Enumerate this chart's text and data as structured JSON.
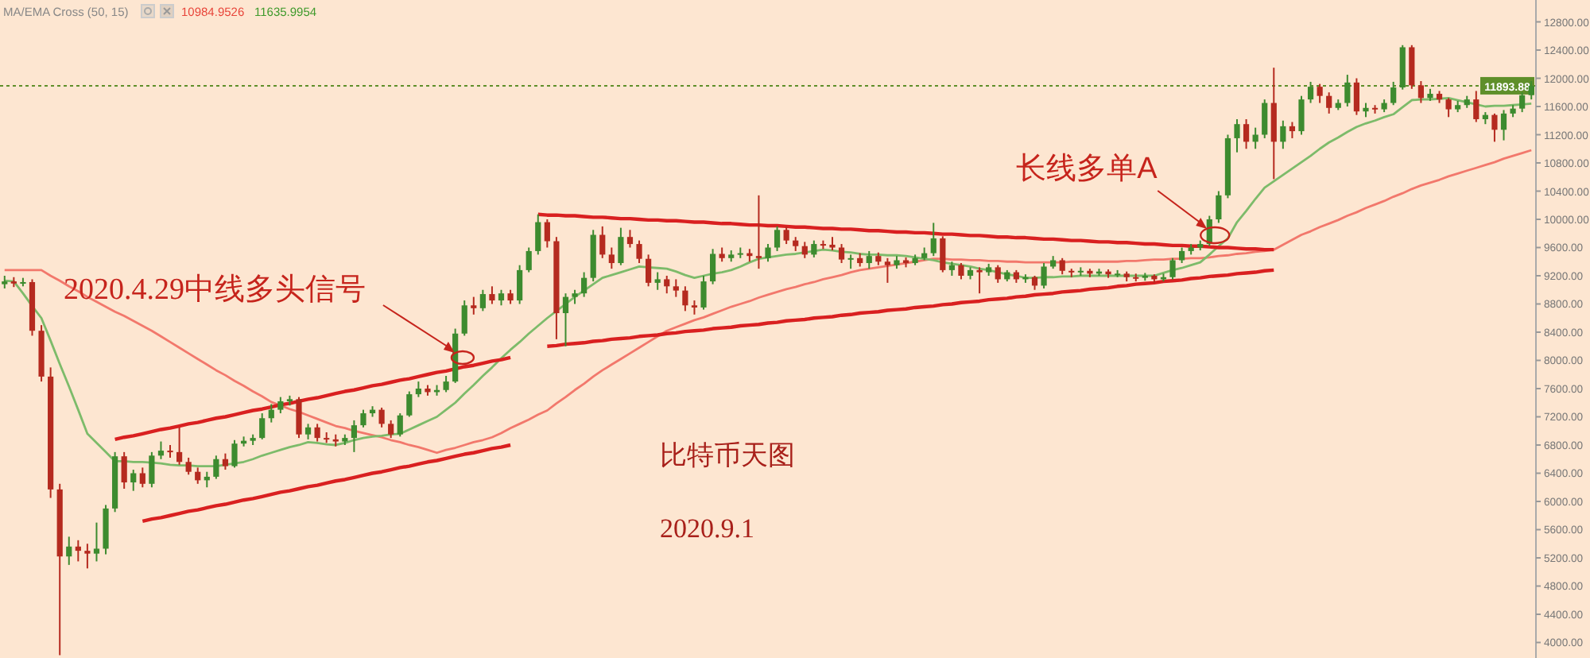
{
  "chart_data": {
    "type": "candlestick",
    "annotations": [
      "MA/EMA Cross (50, 15)",
      "10984.9526",
      "11635.9954",
      "2020.4.29中线多头信号",
      "长线多单A",
      "比特币天图",
      "2020.9.1"
    ],
    "categories": [
      null,
      null,
      null,
      null,
      null,
      null,
      null,
      null,
      null,
      null,
      null,
      null,
      null,
      null,
      null,
      null,
      null,
      null,
      null,
      null,
      null,
      null,
      null,
      null,
      null,
      null,
      null,
      null,
      null,
      null,
      null,
      null,
      null,
      null,
      null,
      null,
      null,
      null,
      null,
      null,
      null,
      null,
      null,
      null,
      null,
      null,
      null,
      null,
      null,
      null,
      null,
      null,
      null,
      null,
      null,
      null,
      null,
      null,
      null,
      null,
      null,
      null,
      null,
      null,
      null,
      null,
      null,
      null,
      null,
      null,
      null,
      null,
      null,
      null,
      null,
      null,
      null,
      null,
      null,
      null,
      null,
      null,
      null,
      null,
      null,
      null,
      null,
      null,
      null,
      null,
      null,
      null,
      null,
      null,
      null,
      null,
      null,
      null,
      null,
      null,
      null,
      null,
      null,
      null,
      null,
      null,
      null,
      null,
      null,
      null,
      null,
      null,
      null,
      null,
      null,
      null,
      null,
      null,
      null,
      null,
      null,
      null,
      null,
      null,
      null,
      null,
      null,
      null,
      null,
      null,
      null,
      null,
      null,
      null,
      null,
      null,
      null,
      null,
      null,
      null,
      null,
      null,
      null,
      null,
      null,
      null,
      null,
      null,
      null,
      null,
      null,
      null,
      null,
      null,
      null,
      null,
      null,
      null,
      null,
      null,
      null,
      null,
      null,
      null,
      null,
      null,
      null
    ],
    "ohlc": [
      [
        9080,
        9200,
        9020,
        9120
      ],
      [
        9120,
        9180,
        9040,
        9090
      ],
      [
        9090,
        9170,
        9050,
        9110
      ],
      [
        9110,
        9150,
        8350,
        8420
      ],
      [
        8420,
        8500,
        7700,
        7770
      ],
      [
        7770,
        7900,
        6050,
        6170
      ],
      [
        6170,
        6250,
        3820,
        5220
      ],
      [
        5220,
        5500,
        5100,
        5360
      ],
      [
        5360,
        5450,
        5150,
        5300
      ],
      [
        5300,
        5400,
        5050,
        5260
      ],
      [
        5260,
        5700,
        5150,
        5330
      ],
      [
        5330,
        5950,
        5250,
        5900
      ],
      [
        5900,
        6700,
        5850,
        6640
      ],
      [
        6640,
        6700,
        6180,
        6270
      ],
      [
        6270,
        6450,
        6150,
        6400
      ],
      [
        6400,
        6480,
        6200,
        6250
      ],
      [
        6250,
        6700,
        6200,
        6650
      ],
      [
        6650,
        6850,
        6600,
        6720
      ],
      [
        6720,
        6800,
        6620,
        6700
      ],
      [
        6700,
        7050,
        6520,
        6560
      ],
      [
        6560,
        6620,
        6380,
        6420
      ],
      [
        6420,
        6480,
        6250,
        6300
      ],
      [
        6300,
        6420,
        6200,
        6350
      ],
      [
        6350,
        6650,
        6320,
        6600
      ],
      [
        6600,
        6680,
        6450,
        6500
      ],
      [
        6500,
        6870,
        6480,
        6820
      ],
      [
        6820,
        6920,
        6780,
        6860
      ],
      [
        6860,
        6950,
        6800,
        6900
      ],
      [
        6900,
        7250,
        6880,
        7180
      ],
      [
        7180,
        7380,
        7120,
        7300
      ],
      [
        7300,
        7480,
        7250,
        7420
      ],
      [
        7420,
        7500,
        7360,
        7450
      ],
      [
        7450,
        7480,
        6900,
        6950
      ],
      [
        6950,
        7100,
        6880,
        7050
      ],
      [
        7050,
        7100,
        6850,
        6900
      ],
      [
        6900,
        6980,
        6830,
        6880
      ],
      [
        6880,
        6950,
        6780,
        6850
      ],
      [
        6850,
        6950,
        6800,
        6900
      ],
      [
        6900,
        7150,
        6700,
        7080
      ],
      [
        7080,
        7300,
        7050,
        7250
      ],
      [
        7250,
        7350,
        7200,
        7300
      ],
      [
        7300,
        7330,
        7050,
        7100
      ],
      [
        7100,
        7150,
        6900,
        6950
      ],
      [
        6950,
        7250,
        6920,
        7220
      ],
      [
        7220,
        7560,
        7200,
        7520
      ],
      [
        7520,
        7700,
        7480,
        7600
      ],
      [
        7600,
        7650,
        7500,
        7550
      ],
      [
        7550,
        7650,
        7500,
        7580
      ],
      [
        7580,
        7780,
        7550,
        7700
      ],
      [
        7700,
        8450,
        7680,
        8380
      ],
      [
        8380,
        8850,
        8350,
        8780
      ],
      [
        8780,
        8900,
        8650,
        8740
      ],
      [
        8740,
        9000,
        8700,
        8940
      ],
      [
        8940,
        9050,
        8800,
        8850
      ],
      [
        8850,
        9000,
        8780,
        8950
      ],
      [
        8950,
        9000,
        8800,
        8850
      ],
      [
        8850,
        9350,
        8800,
        9280
      ],
      [
        9280,
        9600,
        9250,
        9550
      ],
      [
        9550,
        10070,
        9500,
        9960
      ],
      [
        9960,
        10000,
        9600,
        9690
      ],
      [
        9690,
        9750,
        8300,
        8670
      ],
      [
        8670,
        8950,
        8200,
        8900
      ],
      [
        8900,
        9000,
        8800,
        8950
      ],
      [
        8950,
        9250,
        8900,
        9170
      ],
      [
        9170,
        9850,
        9120,
        9780
      ],
      [
        9780,
        9900,
        9450,
        9500
      ],
      [
        9500,
        9600,
        9300,
        9380
      ],
      [
        9380,
        9880,
        9350,
        9750
      ],
      [
        9750,
        9850,
        9600,
        9650
      ],
      [
        9650,
        9700,
        9380,
        9440
      ],
      [
        9440,
        9500,
        9050,
        9100
      ],
      [
        9100,
        9250,
        9000,
        9150
      ],
      [
        9150,
        9200,
        8950,
        9050
      ],
      [
        9050,
        9150,
        8900,
        8990
      ],
      [
        8990,
        9050,
        8700,
        8780
      ],
      [
        8780,
        8850,
        8650,
        8750
      ],
      [
        8750,
        9200,
        8720,
        9120
      ],
      [
        9120,
        9580,
        9080,
        9510
      ],
      [
        9510,
        9600,
        9400,
        9450
      ],
      [
        9450,
        9560,
        9400,
        9500
      ],
      [
        9500,
        9600,
        9450,
        9520
      ],
      [
        9520,
        9580,
        9400,
        9480
      ],
      [
        9480,
        10340,
        9300,
        9450
      ],
      [
        9450,
        9650,
        9400,
        9600
      ],
      [
        9600,
        9900,
        9550,
        9850
      ],
      [
        9850,
        9900,
        9650,
        9700
      ],
      [
        9700,
        9750,
        9550,
        9620
      ],
      [
        9620,
        9680,
        9450,
        9500
      ],
      [
        9500,
        9700,
        9460,
        9650
      ],
      [
        9650,
        9700,
        9580,
        9640
      ],
      [
        9640,
        9750,
        9560,
        9600
      ],
      [
        9600,
        9650,
        9380,
        9430
      ],
      [
        9430,
        9500,
        9300,
        9450
      ],
      [
        9450,
        9520,
        9330,
        9380
      ],
      [
        9380,
        9550,
        9300,
        9480
      ],
      [
        9480,
        9530,
        9350,
        9400
      ],
      [
        9400,
        9450,
        9100,
        9350
      ],
      [
        9350,
        9480,
        9300,
        9420
      ],
      [
        9420,
        9460,
        9320,
        9380
      ],
      [
        9380,
        9500,
        9350,
        9450
      ],
      [
        9450,
        9600,
        9420,
        9520
      ],
      [
        9520,
        9950,
        9480,
        9730
      ],
      [
        9730,
        9760,
        9250,
        9280
      ],
      [
        9280,
        9400,
        9200,
        9350
      ],
      [
        9350,
        9380,
        9150,
        9200
      ],
      [
        9200,
        9320,
        9150,
        9280
      ],
      [
        9280,
        9320,
        8950,
        9250
      ],
      [
        9250,
        9370,
        9200,
        9320
      ],
      [
        9320,
        9350,
        9100,
        9150
      ],
      [
        9150,
        9280,
        9120,
        9250
      ],
      [
        9250,
        9280,
        9100,
        9150
      ],
      [
        9150,
        9220,
        9100,
        9180
      ],
      [
        9180,
        9200,
        9000,
        9060
      ],
      [
        9060,
        9380,
        9020,
        9330
      ],
      [
        9330,
        9480,
        9300,
        9420
      ],
      [
        9420,
        9450,
        9220,
        9270
      ],
      [
        9270,
        9300,
        9180,
        9250
      ],
      [
        9250,
        9320,
        9200,
        9270
      ],
      [
        9270,
        9300,
        9180,
        9230
      ],
      [
        9230,
        9300,
        9200,
        9260
      ],
      [
        9260,
        9290,
        9170,
        9220
      ],
      [
        9220,
        9280,
        9180,
        9230
      ],
      [
        9230,
        9260,
        9120,
        9180
      ],
      [
        9180,
        9230,
        9120,
        9170
      ],
      [
        9170,
        9240,
        9130,
        9200
      ],
      [
        9200,
        9220,
        9100,
        9150
      ],
      [
        9150,
        9230,
        9120,
        9180
      ],
      [
        9180,
        9450,
        9150,
        9420
      ],
      [
        9420,
        9600,
        9380,
        9550
      ],
      [
        9550,
        9650,
        9500,
        9600
      ],
      [
        9600,
        9700,
        9560,
        9650
      ],
      [
        9650,
        10050,
        9620,
        10000
      ],
      [
        10000,
        10400,
        9950,
        10340
      ],
      [
        10340,
        11200,
        10300,
        11150
      ],
      [
        11150,
        11420,
        10950,
        11350
      ],
      [
        11350,
        11420,
        11000,
        11100
      ],
      [
        11100,
        11300,
        11000,
        11200
      ],
      [
        11200,
        11700,
        11150,
        11650
      ],
      [
        11650,
        12150,
        10570,
        11100
      ],
      [
        11100,
        11400,
        11000,
        11320
      ],
      [
        11320,
        11380,
        11150,
        11250
      ],
      [
        11250,
        11750,
        11200,
        11700
      ],
      [
        11700,
        11950,
        11650,
        11880
      ],
      [
        11880,
        11920,
        11650,
        11750
      ],
      [
        11750,
        11800,
        11500,
        11580
      ],
      [
        11580,
        11700,
        11550,
        11650
      ],
      [
        11650,
        12050,
        11600,
        11940
      ],
      [
        11940,
        12000,
        11480,
        11530
      ],
      [
        11530,
        11650,
        11450,
        11580
      ],
      [
        11580,
        11620,
        11500,
        11560
      ],
      [
        11560,
        11700,
        11520,
        11650
      ],
      [
        11650,
        11950,
        11620,
        11870
      ],
      [
        11870,
        12470,
        11840,
        12440
      ],
      [
        12440,
        12470,
        11850,
        11900
      ],
      [
        11900,
        11960,
        11650,
        11720
      ],
      [
        11720,
        11850,
        11680,
        11780
      ],
      [
        11780,
        11820,
        11650,
        11700
      ],
      [
        11700,
        11720,
        11450,
        11560
      ],
      [
        11560,
        11680,
        11520,
        11620
      ],
      [
        11620,
        11750,
        11580,
        11700
      ],
      [
        11700,
        11820,
        11380,
        11420
      ],
      [
        11420,
        11520,
        11350,
        11480
      ],
      [
        11480,
        11500,
        11100,
        11270
      ],
      [
        11270,
        11550,
        11120,
        11500
      ],
      [
        11500,
        11620,
        11450,
        11570
      ],
      [
        11570,
        11800,
        11520,
        11760
      ],
      [
        11760,
        11960,
        11700,
        11893.88
      ]
    ],
    "ylim": [
      3780,
      13110
    ],
    "yticks": [
      {
        "value": 4000,
        "label": "4000.00"
      },
      {
        "value": 4400,
        "label": "4400.00"
      },
      {
        "value": 4800,
        "label": "4800.00"
      },
      {
        "value": 5200,
        "label": "5200.00"
      },
      {
        "value": 5600,
        "label": "5600.00"
      },
      {
        "value": 6000,
        "label": "6000.00"
      },
      {
        "value": 6400,
        "label": "6400.00"
      },
      {
        "value": 6800,
        "label": "6800.00"
      },
      {
        "value": 7200,
        "label": "7200.00"
      },
      {
        "value": 7600,
        "label": "7600.00"
      },
      {
        "value": 8000,
        "label": "8000.00"
      },
      {
        "value": 8400,
        "label": "8400.00"
      },
      {
        "value": 8800,
        "label": "8800.00"
      },
      {
        "value": 9200,
        "label": "9200.00"
      },
      {
        "value": 9600,
        "label": "9600.00"
      },
      {
        "value": 10000,
        "label": "10000.00"
      },
      {
        "value": 10400,
        "label": "10400.00"
      },
      {
        "value": 10800,
        "label": "10800.00"
      },
      {
        "value": 11200,
        "label": "11200.00"
      },
      {
        "value": 11600,
        "label": "11600.00"
      },
      {
        "value": 12000,
        "label": "12000.00"
      },
      {
        "value": 12400,
        "label": "12400.00"
      },
      {
        "value": 12800,
        "label": "12800.00"
      }
    ],
    "tick_labels": "y",
    "ref_lines": [
      {
        "axis": "y",
        "value": 11893.88,
        "label": "11893.88",
        "color": "#5f8f2a",
        "line_style": "dotted"
      }
    ],
    "series": [
      {
        "type": "line",
        "color": "#f2786c",
        "values": [
          9280,
          9280,
          9280,
          9280,
          9280,
          9200,
          9130,
          9050,
          8980,
          8900,
          8830,
          8760,
          8690,
          8630,
          8560,
          8490,
          8420,
          8340,
          8260,
          8180,
          8100,
          8020,
          7940,
          7860,
          7790,
          7710,
          7640,
          7560,
          7490,
          7410,
          7360,
          7310,
          7270,
          7220,
          7170,
          7120,
          7070,
          7040,
          7000,
          6970,
          6940,
          6910,
          6870,
          6840,
          6800,
          6770,
          6730,
          6690,
          6730,
          6760,
          6800,
          6840,
          6870,
          6910,
          6970,
          7040,
          7100,
          7160,
          7230,
          7290,
          7390,
          7480,
          7580,
          7670,
          7770,
          7860,
          7940,
          8020,
          8100,
          8180,
          8260,
          8340,
          8420,
          8470,
          8520,
          8570,
          8610,
          8660,
          8710,
          8760,
          8800,
          8840,
          8890,
          8930,
          8970,
          9010,
          9040,
          9080,
          9110,
          9150,
          9180,
          9210,
          9250,
          9280,
          9300,
          9320,
          9340,
          9360,
          9380,
          9400,
          9420,
          9440,
          9440,
          9430,
          9430,
          9420,
          9420,
          9410,
          9410,
          9400,
          9400,
          9390,
          9390,
          9390,
          9390,
          9390,
          9400,
          9400,
          9400,
          9400,
          9400,
          9400,
          9410,
          9410,
          9420,
          9430,
          9430,
          9440,
          9440,
          9450,
          9450,
          9460,
          9480,
          9490,
          9510,
          9520,
          9540,
          9550,
          9570,
          9640,
          9710,
          9780,
          9830,
          9890,
          9940,
          9990,
          10050,
          10100,
          10160,
          10210,
          10260,
          10320,
          10370,
          10430,
          10480,
          10520,
          10560,
          10610,
          10650,
          10690,
          10730,
          10770,
          10810,
          10860,
          10900,
          10940,
          10980
        ]
      },
      {
        "type": "line",
        "color": "#7dbb6a",
        "values": [
          9130,
          9120,
          8950,
          8770,
          8600,
          8280,
          7950,
          7630,
          7300,
          6960,
          6830,
          6700,
          6570,
          6570,
          6560,
          6560,
          6550,
          6540,
          6520,
          6510,
          6510,
          6500,
          6500,
          6500,
          6520,
          6540,
          6560,
          6600,
          6650,
          6690,
          6730,
          6770,
          6800,
          6840,
          6830,
          6810,
          6800,
          6830,
          6870,
          6900,
          6920,
          6930,
          6950,
          6960,
          7020,
          7080,
          7140,
          7200,
          7300,
          7400,
          7530,
          7650,
          7780,
          7900,
          8030,
          8150,
          8260,
          8380,
          8490,
          8600,
          8700,
          8800,
          8900,
          8990,
          9080,
          9170,
          9210,
          9250,
          9290,
          9330,
          9320,
          9310,
          9300,
          9260,
          9210,
          9170,
          9200,
          9230,
          9250,
          9280,
          9330,
          9390,
          9440,
          9460,
          9480,
          9500,
          9510,
          9530,
          9550,
          9570,
          9560,
          9540,
          9530,
          9510,
          9500,
          9500,
          9490,
          9490,
          9480,
          9460,
          9440,
          9420,
          9390,
          9370,
          9350,
          9330,
          9300,
          9280,
          9250,
          9220,
          9200,
          9170,
          9170,
          9180,
          9180,
          9190,
          9190,
          9200,
          9200,
          9200,
          9200,
          9200,
          9200,
          9200,
          9200,
          9200,
          9240,
          9280,
          9310,
          9350,
          9390,
          9500,
          9620,
          9730,
          9960,
          10120,
          10290,
          10450,
          10540,
          10630,
          10720,
          10810,
          10900,
          11000,
          11090,
          11160,
          11240,
          11310,
          11360,
          11400,
          11450,
          11490,
          11590,
          11690,
          11700,
          11700,
          11710,
          11720,
          11690,
          11660,
          11630,
          11600,
          11610,
          11610,
          11620,
          11630,
          11640
        ]
      },
      {
        "type": "line",
        "color": "#d92020",
        "values": [
          null,
          null,
          null,
          null,
          null,
          null,
          null,
          null,
          null,
          null,
          null,
          null,
          6880,
          6910,
          6930,
          6960,
          6990,
          7020,
          7040,
          7070,
          7100,
          7120,
          7150,
          7180,
          7200,
          7230,
          7260,
          7290,
          7310,
          7340,
          7370,
          7390,
          7420,
          7450,
          7470,
          7500,
          7530,
          7560,
          7580,
          7610,
          7640,
          7660,
          7690,
          7720,
          7740,
          7770,
          7800,
          7830,
          7850,
          7880,
          7910,
          7930,
          7960,
          7990,
          8010,
          8040,
          null,
          null,
          null,
          null,
          null,
          null,
          null,
          null,
          null,
          null,
          null,
          null,
          null,
          null,
          null,
          null,
          null,
          null,
          null,
          null,
          null,
          null,
          null,
          null,
          null,
          null,
          null,
          null,
          null,
          null,
          null,
          null,
          null,
          null,
          null,
          null,
          null,
          null,
          null,
          null,
          null,
          null,
          null,
          null,
          null,
          null,
          null,
          null,
          null,
          null,
          null,
          null,
          null,
          null,
          null,
          null,
          null,
          null,
          null,
          null,
          null,
          null,
          null,
          null,
          null,
          null,
          null,
          null,
          null,
          null,
          null,
          null,
          null,
          null,
          null,
          null,
          null,
          null,
          null,
          null,
          null,
          null,
          null,
          null,
          null,
          null,
          null,
          null,
          null,
          null,
          null,
          null,
          null,
          null,
          null,
          null,
          null,
          null,
          null,
          null,
          null,
          null,
          null,
          null,
          null,
          null,
          null,
          null,
          null,
          null,
          null
        ]
      },
      {
        "type": "line",
        "color": "#d92020",
        "values": [
          null,
          null,
          null,
          null,
          null,
          null,
          null,
          null,
          null,
          null,
          null,
          null,
          null,
          null,
          null,
          5720,
          5750,
          5770,
          5800,
          5830,
          5860,
          5880,
          5910,
          5940,
          5960,
          5990,
          6020,
          6040,
          6070,
          6100,
          6130,
          6150,
          6180,
          6210,
          6230,
          6260,
          6290,
          6310,
          6340,
          6370,
          6400,
          6420,
          6450,
          6480,
          6500,
          6530,
          6560,
          6580,
          6610,
          6640,
          6670,
          6690,
          6720,
          6750,
          6770,
          6800,
          null,
          null,
          null,
          null,
          null,
          null,
          null,
          null,
          null,
          null,
          null,
          null,
          null,
          null,
          null,
          null,
          null,
          null,
          null,
          null,
          null,
          null,
          null,
          null,
          null,
          null,
          null,
          null,
          null,
          null,
          null,
          null,
          null,
          null,
          null,
          null,
          null,
          null,
          null,
          null,
          null,
          null,
          null,
          null,
          null,
          null,
          null,
          null,
          null,
          null,
          null,
          null,
          null,
          null,
          null,
          null,
          null,
          null,
          null,
          null,
          null,
          null,
          null,
          null,
          null,
          null,
          null,
          null,
          null,
          null,
          null,
          null,
          null,
          null,
          null,
          null,
          null,
          null,
          null,
          null,
          null,
          null,
          null,
          null,
          null,
          null,
          null,
          null,
          null,
          null,
          null,
          null,
          null,
          null,
          null,
          null,
          null,
          null,
          null,
          null,
          null,
          null,
          null,
          null,
          null,
          null,
          null,
          null,
          null,
          null,
          null
        ]
      },
      {
        "type": "line",
        "color": "#d92020",
        "values": [
          null,
          null,
          null,
          null,
          null,
          null,
          null,
          null,
          null,
          null,
          null,
          null,
          null,
          null,
          null,
          null,
          null,
          null,
          null,
          null,
          null,
          null,
          null,
          null,
          null,
          null,
          null,
          null,
          null,
          null,
          null,
          null,
          null,
          null,
          null,
          null,
          null,
          null,
          null,
          null,
          null,
          null,
          null,
          null,
          null,
          null,
          null,
          null,
          null,
          null,
          null,
          null,
          null,
          null,
          null,
          null,
          null,
          null,
          10070,
          10060,
          10060,
          10050,
          10050,
          10040,
          10030,
          10030,
          10020,
          10010,
          10010,
          10000,
          9990,
          9990,
          9980,
          9980,
          9970,
          9960,
          9960,
          9950,
          9940,
          9940,
          9930,
          9920,
          9920,
          9910,
          9910,
          9900,
          9890,
          9890,
          9880,
          9870,
          9870,
          9860,
          9860,
          9850,
          9840,
          9840,
          9830,
          9820,
          9820,
          9810,
          9810,
          9800,
          9790,
          9790,
          9780,
          9770,
          9770,
          9760,
          9750,
          9750,
          9740,
          9740,
          9730,
          9720,
          9720,
          9710,
          9700,
          9700,
          9690,
          9680,
          9680,
          9670,
          9670,
          9660,
          9650,
          9650,
          9640,
          9630,
          9630,
          9620,
          9620,
          9610,
          9600,
          9600,
          9590,
          9580,
          9580,
          9570,
          9570,
          null,
          null,
          null,
          null,
          null,
          null,
          null,
          null,
          null,
          null,
          null,
          null,
          null,
          null,
          null,
          null,
          null,
          null,
          null,
          null,
          null,
          null,
          null,
          null,
          null,
          null,
          null,
          null
        ]
      },
      {
        "type": "line",
        "color": "#d92020",
        "values": [
          null,
          null,
          null,
          null,
          null,
          null,
          null,
          null,
          null,
          null,
          null,
          null,
          null,
          null,
          null,
          null,
          null,
          null,
          null,
          null,
          null,
          null,
          null,
          null,
          null,
          null,
          null,
          null,
          null,
          null,
          null,
          null,
          null,
          null,
          null,
          null,
          null,
          null,
          null,
          null,
          null,
          null,
          null,
          null,
          null,
          null,
          null,
          null,
          null,
          null,
          null,
          null,
          null,
          null,
          null,
          null,
          null,
          null,
          null,
          8200,
          8210,
          8230,
          8240,
          8250,
          8270,
          8280,
          8300,
          8310,
          8320,
          8340,
          8350,
          8360,
          8380,
          8390,
          8410,
          8420,
          8430,
          8450,
          8460,
          8470,
          8490,
          8500,
          8510,
          8530,
          8540,
          8560,
          8570,
          8580,
          8600,
          8610,
          8620,
          8640,
          8650,
          8670,
          8680,
          8690,
          8710,
          8720,
          8730,
          8750,
          8760,
          8770,
          8790,
          8800,
          8820,
          8830,
          8840,
          8860,
          8870,
          8880,
          8900,
          8910,
          8930,
          8940,
          8950,
          8970,
          8980,
          8990,
          9010,
          9020,
          9030,
          9050,
          9060,
          9080,
          9090,
          9100,
          9120,
          9130,
          9140,
          9160,
          9170,
          9190,
          9200,
          9210,
          9230,
          9240,
          9250,
          9270,
          9280,
          null,
          null,
          null,
          null,
          null,
          null,
          null,
          null,
          null,
          null,
          null,
          null,
          null,
          null,
          null,
          null,
          null,
          null,
          null,
          null,
          null,
          null,
          null,
          null,
          null,
          null,
          null,
          null
        ]
      }
    ]
  }
}
